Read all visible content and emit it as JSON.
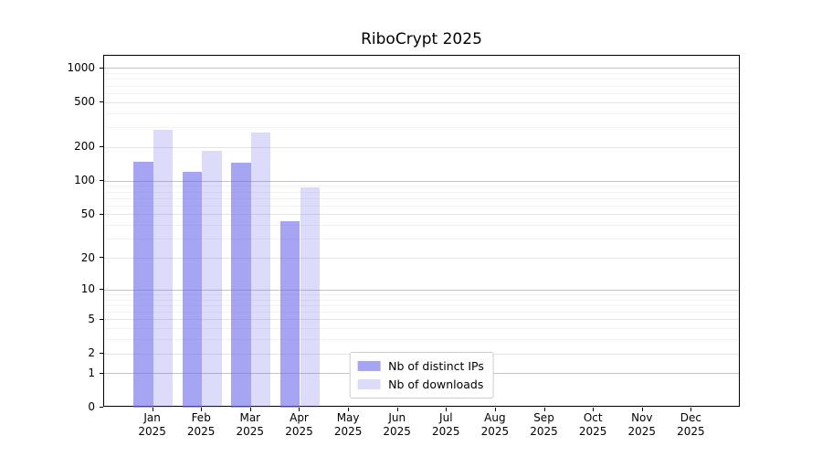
{
  "chart_data": {
    "type": "bar",
    "title": "RiboCrypt 2025",
    "categories": [
      "Jan",
      "Feb",
      "Mar",
      "Apr",
      "May",
      "Jun",
      "Jul",
      "Aug",
      "Sep",
      "Oct",
      "Nov",
      "Dec"
    ],
    "year_label": "2025",
    "series": [
      {
        "key": "distinct-ips",
        "name": "Nb of distinct IPs",
        "color": "rgba(110,110,235,0.62)",
        "values": [
          148,
          120,
          145,
          44,
          null,
          null,
          null,
          null,
          null,
          null,
          null,
          null
        ]
      },
      {
        "key": "downloads",
        "name": "Nb of downloads",
        "color": "rgba(110,110,235,0.24)",
        "values": [
          288,
          186,
          272,
          88,
          null,
          null,
          null,
          null,
          null,
          null,
          null,
          null
        ]
      }
    ],
    "yscale": "log1p",
    "ylim": [
      0,
      1296
    ],
    "yticks": [
      0,
      1,
      2,
      5,
      10,
      20,
      50,
      100,
      200,
      500,
      1000
    ],
    "major_gridline_ticks": [
      1,
      10,
      100,
      1000
    ],
    "grid": "horizontal",
    "legend_position": "inside-bottom-center",
    "xlabel": "",
    "ylabel": ""
  },
  "colors": {
    "background": "#ffffff",
    "axis": "#000000",
    "grid_major": "#c3c3c3",
    "grid_mid": "#e4e4e4",
    "grid_minor": "#f2f2f2",
    "legend_border": "#cccccc",
    "bar_dark": "rgba(110,110,235,0.62)",
    "bar_light": "rgba(110,110,235,0.24)"
  }
}
